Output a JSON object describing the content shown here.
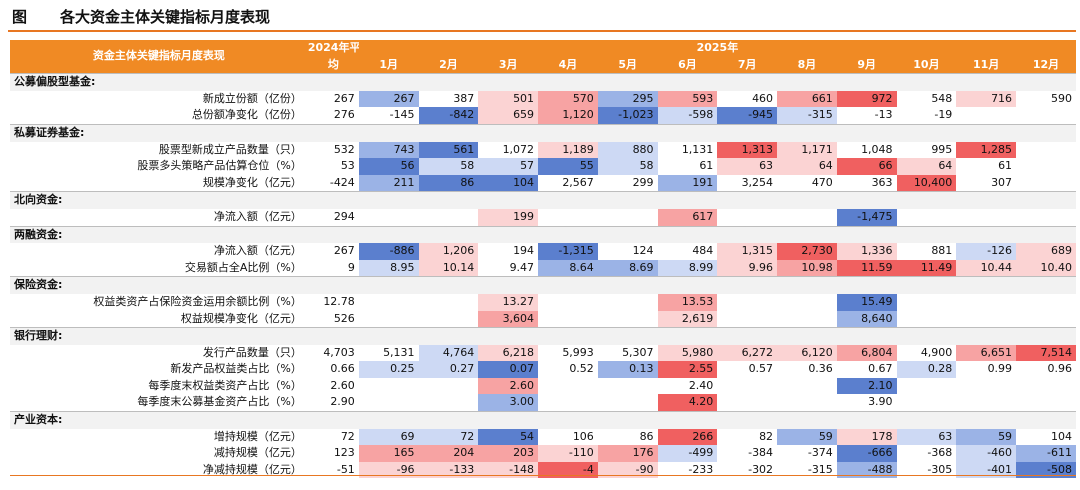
{
  "page": {
    "tag": "图",
    "title": "各大资金主体关键指标月度表现"
  },
  "header": {
    "left_label": "资金主体关键指标月度表现",
    "avg_label_line1": "2024年平",
    "avg_label_line2": "均",
    "year_label": "2025年",
    "months": [
      "1月",
      "2月",
      "3月",
      "4月",
      "5月",
      "6月",
      "7月",
      "8月",
      "9月",
      "10月",
      "11月",
      "12月"
    ]
  },
  "colors": {
    "accent": "#f08a24",
    "blue_strong": "#5b7fce",
    "blue_mid": "#9bb3e6",
    "blue_light": "#cdd9f4",
    "red_strong": "#f06060",
    "red_mid": "#f7a3a3",
    "red_light": "#fbd3d3"
  },
  "sections": [
    {
      "title": "公募偏股型基金:",
      "rows": [
        {
          "label": "新成立份额（亿份）",
          "avg": "267",
          "values": [
            "267",
            "387",
            "501",
            "570",
            "295",
            "593",
            "460",
            "661",
            "972",
            "548",
            "716",
            "590"
          ],
          "shades": [
            "b2",
            "",
            "r3",
            "r2",
            "b2",
            "r2",
            "",
            "r2",
            "r1",
            "",
            "r3",
            ""
          ]
        },
        {
          "label": "总份额净变化（亿份）",
          "avg": "276",
          "values": [
            "-145",
            "-842",
            "659",
            "1,120",
            "-1,023",
            "-598",
            "-945",
            "-315",
            "-13",
            "-19",
            "",
            ""
          ],
          "shades": [
            "",
            "b1",
            "r3",
            "r2",
            "b1",
            "b3",
            "b1",
            "b3",
            "",
            "",
            "",
            ""
          ]
        }
      ]
    },
    {
      "title": "私募证券基金:",
      "rows": [
        {
          "label": "股票型新成立产品数量（只）",
          "avg": "532",
          "values": [
            "743",
            "561",
            "1,072",
            "1,189",
            "880",
            "1,131",
            "1,313",
            "1,171",
            "1,048",
            "995",
            "1,285",
            ""
          ],
          "shades": [
            "b2",
            "b1",
            "",
            "r3",
            "b3",
            "",
            "r1",
            "r3",
            "",
            "",
            "r1",
            ""
          ]
        },
        {
          "label": "股票多头策略产品估算仓位（%）",
          "avg": "53",
          "values": [
            "56",
            "58",
            "57",
            "55",
            "58",
            "61",
            "63",
            "64",
            "66",
            "64",
            "61",
            ""
          ],
          "shades": [
            "b1",
            "b3",
            "b3",
            "b1",
            "b3",
            "",
            "r3",
            "r3",
            "r1",
            "r3",
            "",
            ""
          ]
        },
        {
          "label": "规模净变化（亿元）",
          "avg": "-424",
          "values": [
            "211",
            "86",
            "104",
            "2,567",
            "299",
            "191",
            "3,254",
            "470",
            "363",
            "10,400",
            "307",
            ""
          ],
          "shades": [
            "b2",
            "b1",
            "b1",
            "",
            "",
            "b2",
            "",
            "",
            "",
            "r1",
            "",
            ""
          ]
        }
      ]
    },
    {
      "title": "北向资金:",
      "rows": [
        {
          "label": "净流入额（亿元）",
          "avg": "294",
          "values": [
            "",
            "",
            "199",
            "",
            "",
            "617",
            "",
            "",
            "-1,475",
            "",
            "",
            ""
          ],
          "shades": [
            "",
            "",
            "r3",
            "",
            "",
            "r2",
            "",
            "",
            "b1",
            "",
            "",
            ""
          ]
        }
      ]
    },
    {
      "title": "两融资金:",
      "rows": [
        {
          "label": "净流入额（亿元）",
          "avg": "267",
          "values": [
            "-886",
            "1,206",
            "194",
            "-1,315",
            "124",
            "484",
            "1,315",
            "2,730",
            "1,336",
            "881",
            "-126",
            "689"
          ],
          "shades": [
            "b1",
            "r3",
            "",
            "b1",
            "",
            "",
            "r3",
            "r1",
            "r3",
            "",
            "b3",
            "r3"
          ]
        },
        {
          "label": "交易额占全A比例（%）",
          "avg": "9",
          "values": [
            "8.95",
            "10.14",
            "9.47",
            "8.64",
            "8.69",
            "8.99",
            "9.96",
            "10.98",
            "11.59",
            "11.49",
            "10.44",
            "10.40"
          ],
          "shades": [
            "b3",
            "r3",
            "",
            "b2",
            "b2",
            "b3",
            "r3",
            "r2",
            "r1",
            "r1",
            "r3",
            "r3"
          ]
        }
      ]
    },
    {
      "title": "保险资金:",
      "rows": [
        {
          "label": "权益类资产占保险资金运用余额比例（%）",
          "avg": "12.78",
          "values": [
            "",
            "",
            "13.27",
            "",
            "",
            "13.53",
            "",
            "",
            "15.49",
            "",
            "",
            ""
          ],
          "shades": [
            "",
            "",
            "r3",
            "",
            "",
            "r2",
            "",
            "",
            "b1",
            "",
            "",
            ""
          ]
        },
        {
          "label": "权益规模净变化（亿元）",
          "avg": "526",
          "values": [
            "",
            "",
            "3,604",
            "",
            "",
            "2,619",
            "",
            "",
            "8,640",
            "",
            "",
            ""
          ],
          "shades": [
            "",
            "",
            "r2",
            "",
            "",
            "r3",
            "",
            "",
            "b2",
            "",
            "",
            ""
          ]
        }
      ]
    },
    {
      "title": "银行理财:",
      "rows": [
        {
          "label": "发行产品数量（只）",
          "avg": "4,703",
          "values": [
            "5,131",
            "4,764",
            "6,218",
            "5,993",
            "5,307",
            "5,980",
            "6,272",
            "6,120",
            "6,804",
            "4,900",
            "6,651",
            "7,514"
          ],
          "shades": [
            "",
            "b3",
            "r3",
            "",
            "",
            "r3",
            "r3",
            "r3",
            "r2",
            "",
            "r2",
            "r1"
          ]
        },
        {
          "label": "新发产品权益类占比（%）",
          "avg": "0.66",
          "values": [
            "0.25",
            "0.27",
            "0.07",
            "0.52",
            "0.13",
            "2.55",
            "0.57",
            "0.36",
            "0.67",
            "0.28",
            "0.99",
            "0.96"
          ],
          "shades": [
            "b3",
            "b3",
            "b1",
            "",
            "b2",
            "r1",
            "",
            "",
            "",
            "b3",
            "",
            ""
          ]
        },
        {
          "label": "每季度末权益类资产占比（%）",
          "avg": "2.60",
          "values": [
            "",
            "",
            "2.60",
            "",
            "",
            "2.40",
            "",
            "",
            "2.10",
            "",
            "",
            ""
          ],
          "shades": [
            "",
            "",
            "r2",
            "",
            "",
            "",
            "",
            "",
            "b1",
            "",
            "",
            ""
          ]
        },
        {
          "label": "每季度末公募基金资产占比（%）",
          "avg": "2.90",
          "values": [
            "",
            "",
            "3.00",
            "",
            "",
            "4.20",
            "",
            "",
            "3.90",
            "",
            "",
            ""
          ],
          "shades": [
            "",
            "",
            "b2",
            "",
            "",
            "r1",
            "",
            "",
            "",
            "",
            "",
            ""
          ]
        }
      ]
    },
    {
      "title": "产业资本:",
      "rows": [
        {
          "label": "增持规模（亿元）",
          "avg": "72",
          "values": [
            "69",
            "72",
            "54",
            "106",
            "86",
            "266",
            "82",
            "59",
            "178",
            "63",
            "59",
            "104"
          ],
          "shades": [
            "b3",
            "b3",
            "b1",
            "",
            "",
            "r1",
            "",
            "b2",
            "r3",
            "b3",
            "b2",
            ""
          ]
        },
        {
          "label": "减持规模（亿元）",
          "avg": "123",
          "values": [
            "165",
            "204",
            "203",
            "-110",
            "176",
            "-499",
            "-384",
            "-374",
            "-666",
            "-368",
            "-460",
            "-611"
          ],
          "shades": [
            "r2",
            "r2",
            "r2",
            "r3",
            "r2",
            "b3",
            "",
            "",
            "b1",
            "",
            "b3",
            "b2"
          ]
        },
        {
          "label": "净减持规模（亿元）",
          "avg": "-51",
          "values": [
            "-96",
            "-133",
            "-148",
            "-4",
            "-90",
            "-233",
            "-302",
            "-315",
            "-488",
            "-305",
            "-401",
            "-508"
          ],
          "shades": [
            "r3",
            "r3",
            "r3",
            "r1",
            "r3",
            "",
            "",
            "",
            "b2",
            "",
            "b3",
            "b1"
          ]
        }
      ]
    }
  ]
}
